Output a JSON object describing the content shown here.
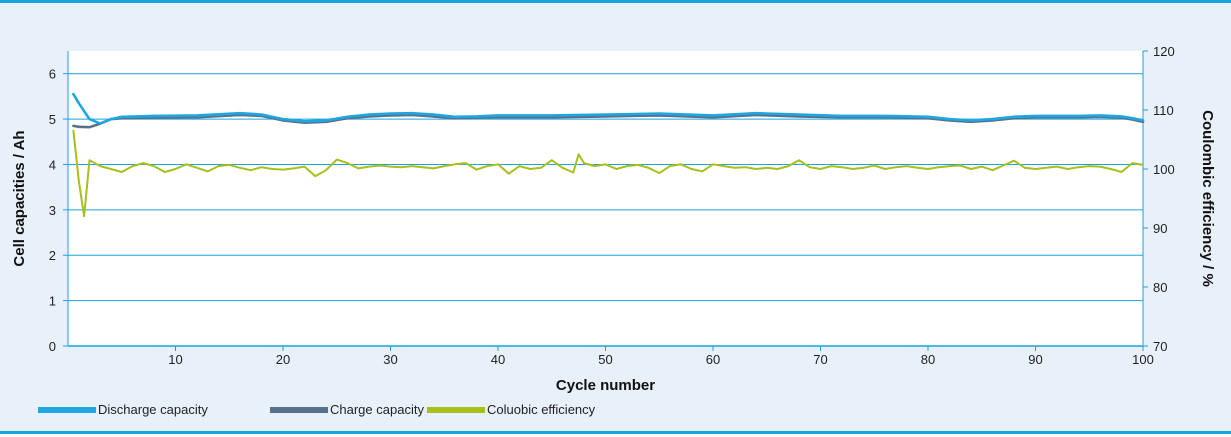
{
  "chart_data": {
    "type": "line",
    "title": "",
    "xlabel": "Cycle number",
    "ylabel": "Cell capacities / Ah",
    "y2label": "Coulombic efficiency / %",
    "xlim": [
      0,
      100
    ],
    "ylim": [
      0,
      6.5
    ],
    "y2lim": [
      70,
      120
    ],
    "x_ticks": [
      10,
      20,
      30,
      40,
      50,
      60,
      70,
      80,
      90,
      100
    ],
    "y_ticks": [
      0,
      1,
      2,
      3,
      4,
      5,
      6
    ],
    "y2_ticks": [
      70,
      80,
      90,
      100,
      110,
      120
    ],
    "grid": "horizontal",
    "legend_position": "bottom-left",
    "series": [
      {
        "name": "Discharge capacity",
        "axis": "left",
        "color": "#1ea7e1",
        "x": [
          0.5,
          1,
          2,
          3,
          4,
          5,
          8,
          12,
          16,
          18,
          20,
          22,
          24,
          26,
          28,
          30,
          32,
          34,
          36,
          38,
          40,
          45,
          50,
          55,
          60,
          64,
          68,
          72,
          76,
          80,
          82,
          84,
          86,
          88,
          90,
          92,
          94,
          96,
          98,
          99,
          100
        ],
        "y": [
          5.55,
          5.35,
          5.0,
          4.9,
          5.0,
          5.05,
          5.07,
          5.08,
          5.13,
          5.1,
          5.0,
          4.95,
          4.97,
          5.05,
          5.1,
          5.12,
          5.13,
          5.1,
          5.05,
          5.06,
          5.08,
          5.08,
          5.1,
          5.12,
          5.08,
          5.13,
          5.1,
          5.07,
          5.07,
          5.05,
          5.0,
          4.97,
          5.0,
          5.05,
          5.07,
          5.07,
          5.07,
          5.08,
          5.06,
          5.02,
          4.97
        ]
      },
      {
        "name": "Charge capacity",
        "axis": "left",
        "color": "#58728b",
        "x": [
          0.5,
          1,
          2,
          3,
          4,
          5,
          8,
          12,
          16,
          18,
          20,
          22,
          24,
          26,
          28,
          30,
          32,
          34,
          36,
          38,
          40,
          45,
          50,
          55,
          60,
          64,
          68,
          72,
          76,
          80,
          82,
          84,
          86,
          88,
          90,
          92,
          94,
          96,
          98,
          99,
          100
        ],
        "y": [
          4.85,
          4.83,
          4.82,
          4.9,
          5.0,
          5.02,
          5.03,
          5.04,
          5.09,
          5.07,
          4.97,
          4.92,
          4.94,
          5.02,
          5.06,
          5.08,
          5.09,
          5.06,
          5.02,
          5.03,
          5.04,
          5.04,
          5.06,
          5.08,
          5.04,
          5.09,
          5.06,
          5.04,
          5.04,
          5.02,
          4.97,
          4.94,
          4.97,
          5.02,
          5.04,
          5.04,
          5.04,
          5.05,
          5.03,
          4.99,
          4.94
        ]
      },
      {
        "name": "Coluobic efficiency",
        "axis": "right",
        "color": "#a8bf1c",
        "x": [
          0.5,
          1,
          1.5,
          2,
          3,
          4,
          5,
          6,
          7,
          8,
          9,
          10,
          11,
          12,
          13,
          14,
          15,
          16,
          17,
          18,
          19,
          20,
          21,
          22,
          23,
          24,
          25,
          26,
          27,
          28,
          29,
          30,
          31,
          32,
          33,
          34,
          35,
          36,
          37,
          38,
          39,
          40,
          41,
          42,
          43,
          44,
          45,
          46,
          47,
          47.5,
          48,
          49,
          50,
          51,
          52,
          53,
          54,
          55,
          56,
          57,
          58,
          59,
          60,
          61,
          62,
          63,
          64,
          65,
          66,
          67,
          68,
          69,
          70,
          71,
          72,
          73,
          74,
          75,
          76,
          77,
          78,
          79,
          80,
          81,
          82,
          83,
          84,
          85,
          86,
          87,
          88,
          89,
          90,
          91,
          92,
          93,
          94,
          95,
          96,
          97,
          98,
          99,
          100
        ],
        "y": [
          106.5,
          98.0,
          92.0,
          101.5,
          100.5,
          100.0,
          99.5,
          100.5,
          101.0,
          100.5,
          99.5,
          100.0,
          100.8,
          100.2,
          99.6,
          100.5,
          100.7,
          100.2,
          99.8,
          100.3,
          100.0,
          99.9,
          100.1,
          100.4,
          98.8,
          99.8,
          101.6,
          101.0,
          100.1,
          100.4,
          100.6,
          100.4,
          100.3,
          100.5,
          100.3,
          100.1,
          100.5,
          100.8,
          101.0,
          99.9,
          100.5,
          100.8,
          99.2,
          100.5,
          100.0,
          100.2,
          101.5,
          100.2,
          99.4,
          102.5,
          101.0,
          100.5,
          100.8,
          100.0,
          100.5,
          100.7,
          100.2,
          99.3,
          100.5,
          100.8,
          100.0,
          99.6,
          100.8,
          100.5,
          100.2,
          100.3,
          100.0,
          100.2,
          100.0,
          100.5,
          101.5,
          100.3,
          100.0,
          100.5,
          100.3,
          100.0,
          100.2,
          100.6,
          100.0,
          100.3,
          100.5,
          100.2,
          100.0,
          100.3,
          100.5,
          100.6,
          100.0,
          100.4,
          99.8,
          100.6,
          101.4,
          100.2,
          100.0,
          100.2,
          100.4,
          100.0,
          100.3,
          100.5,
          100.4,
          100.0,
          99.5,
          101.0,
          100.7
        ]
      }
    ]
  }
}
